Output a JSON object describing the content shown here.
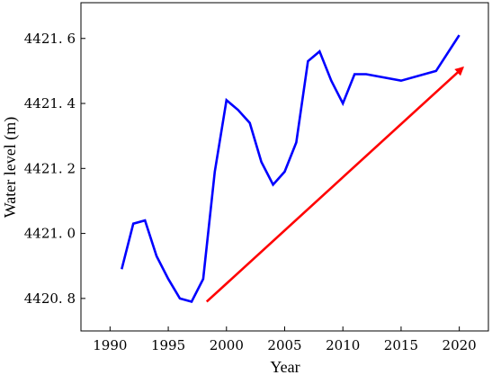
{
  "chart_data": {
    "type": "line",
    "xlabel": "Year",
    "ylabel": "Water level (m)",
    "xlim": [
      1987.5,
      2022.5
    ],
    "ylim": [
      4420.7,
      4421.71
    ],
    "x_ticks": [
      1990,
      1995,
      2000,
      2005,
      2010,
      2015,
      2020
    ],
    "y_ticks": [
      4420.8,
      4421.0,
      4421.2,
      4421.4,
      4421.6
    ],
    "y_tick_labels": [
      "4420. 8",
      "4421. 0",
      "4421. 2",
      "4421. 4",
      "4421. 6"
    ],
    "series": [
      {
        "color": "#0000ff",
        "x": [
          1991,
          1992,
          1993,
          1994,
          1995,
          1996,
          1997,
          1998,
          1999,
          2000,
          2001,
          2002,
          2003,
          2004,
          2005,
          2006,
          2007,
          2008,
          2009,
          2010,
          2011,
          2012,
          2015,
          2018,
          2020
        ],
        "y": [
          4420.89,
          4421.03,
          4421.04,
          4420.93,
          4420.86,
          4420.8,
          4420.79,
          4420.86,
          4421.19,
          4421.41,
          4421.38,
          4421.34,
          4421.22,
          4421.15,
          4421.19,
          4421.28,
          4421.53,
          4421.56,
          4421.47,
          4421.4,
          4421.49,
          4421.49,
          4421.47,
          4421.5,
          4421.61
        ]
      }
    ],
    "annotations": [
      {
        "type": "arrow",
        "color": "#ff0000",
        "from": [
          1998.3,
          4420.79
        ],
        "to": [
          2020.3,
          4421.51
        ]
      }
    ]
  }
}
